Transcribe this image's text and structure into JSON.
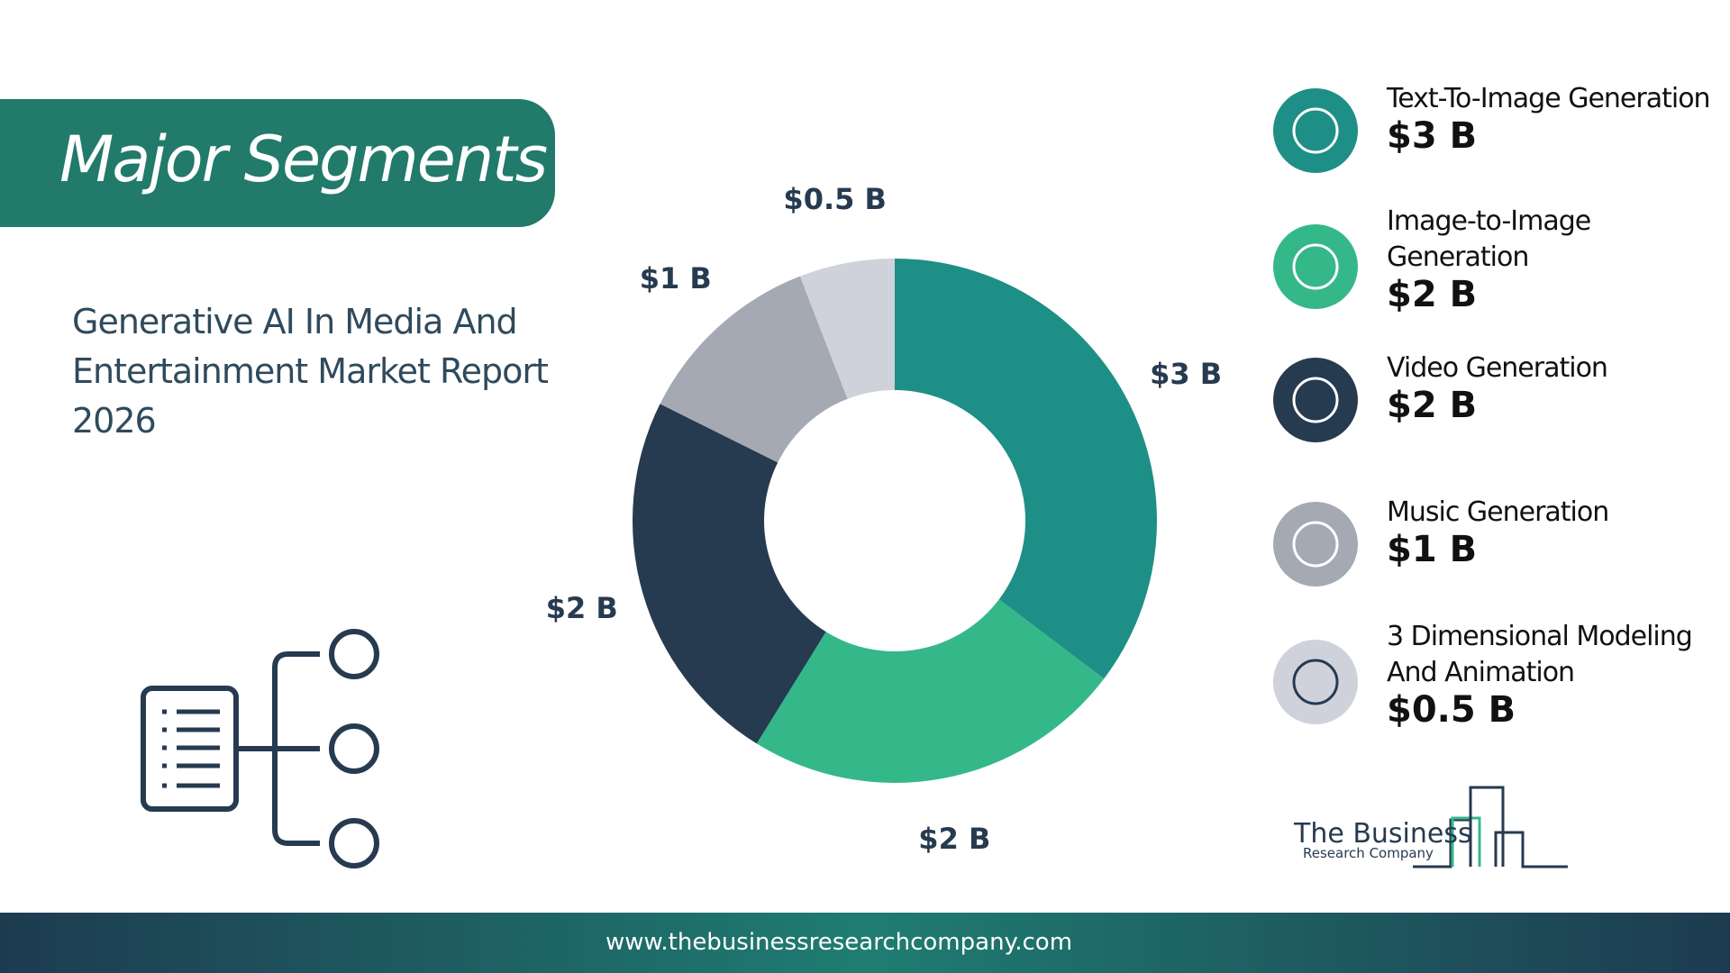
{
  "chart_data": {
    "type": "donut",
    "title": "Major Segments",
    "subtitle": "Generative AI In Media And Entertainment Market Report 2026",
    "categories": [
      "Text-To-Image Generation",
      "Image-to-Image Generation",
      "Video Generation",
      "Music Generation",
      "3 Dimensional Modeling And Animation"
    ],
    "values": [
      3,
      2,
      2,
      1,
      0.5
    ],
    "value_labels": [
      "$3 B",
      "$2 B",
      "$2 B",
      "$1 B",
      "$0.5 B"
    ],
    "colors": [
      "#1e8f86",
      "#34b88a",
      "#263a50",
      "#a5a9b4",
      "#d0d2db"
    ]
  },
  "logo": {
    "line1": "The Business",
    "line2": "Research Company"
  },
  "footer": {
    "url": "www.thebusinessresearchcompany.com"
  }
}
